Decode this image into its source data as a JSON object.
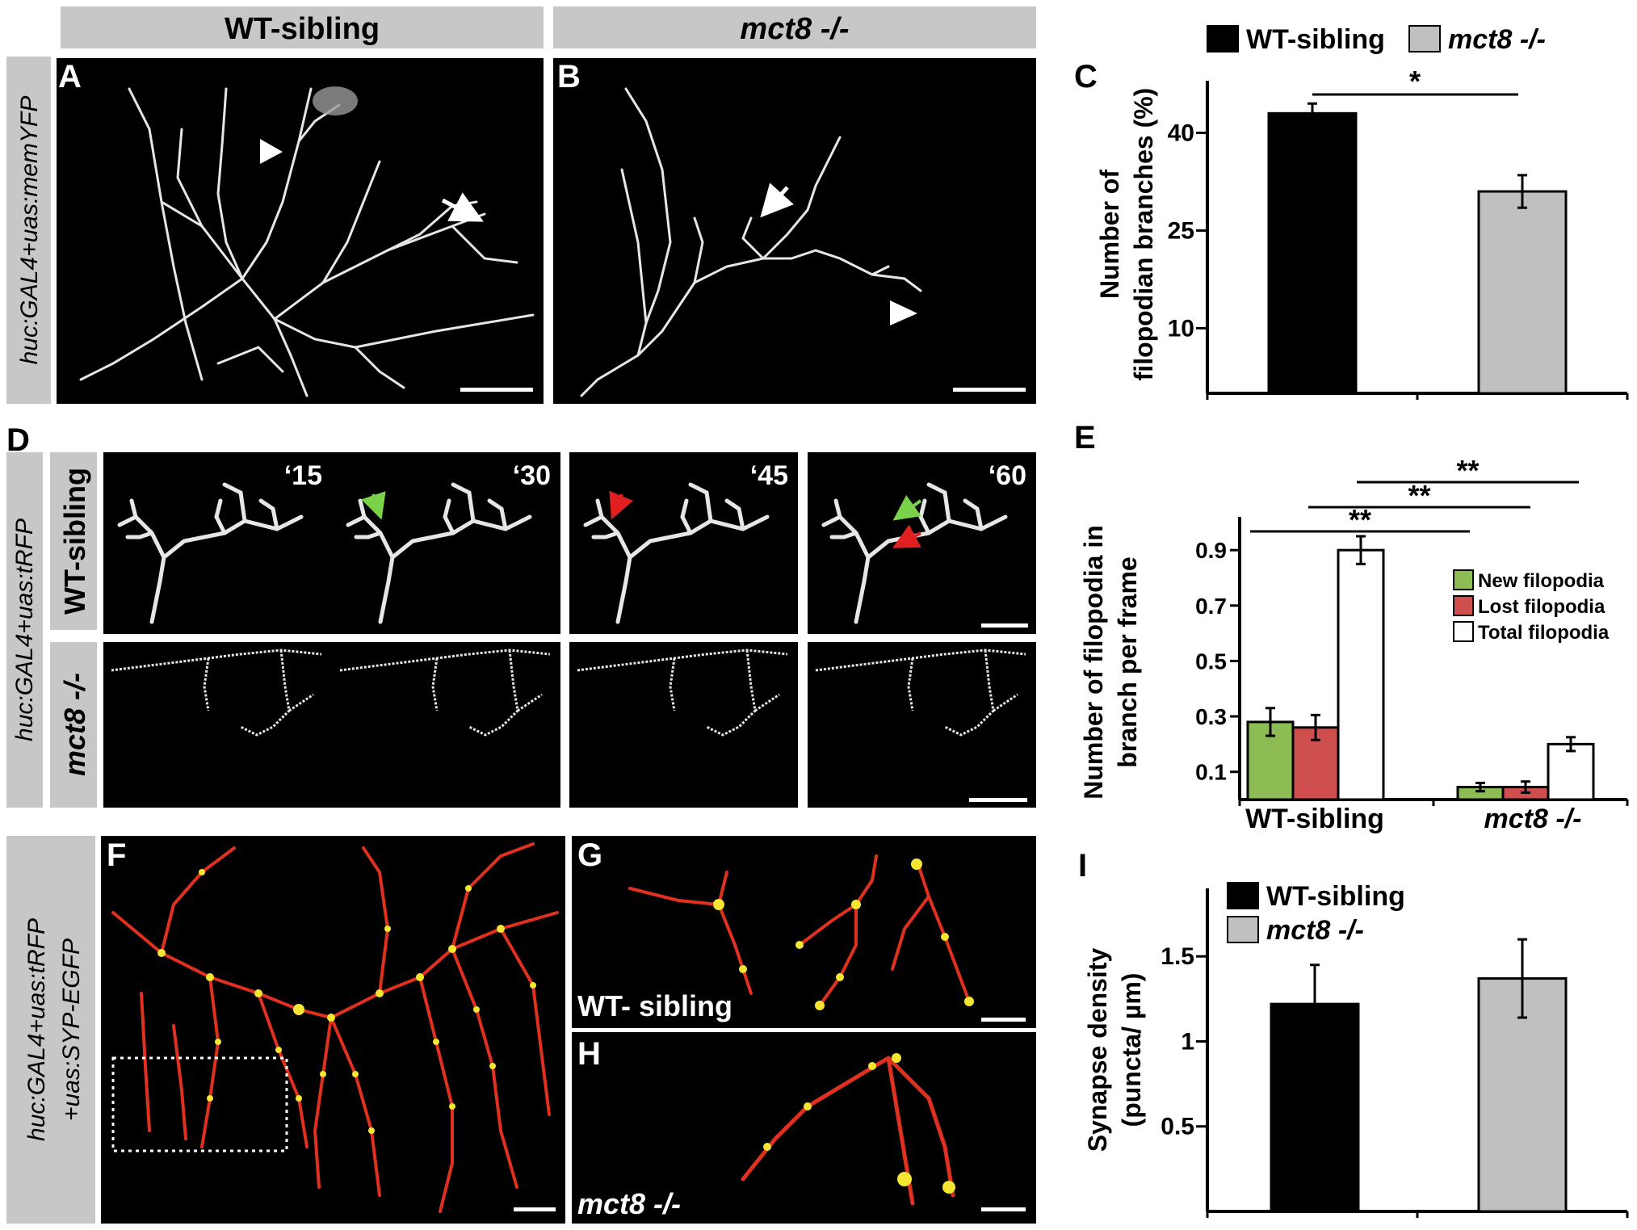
{
  "colors": {
    "grey_band": "#c7c7c7",
    "wt_bar": "#000000",
    "mut_bar": "#c0c0c0",
    "new_filopodia": "#8dbb54",
    "lost_filopodia": "#cf4f4f",
    "total_filopodia": "#ffffff",
    "neuron": "#e6e6e6",
    "neuron_red": "#e03020",
    "puncta_yellow": "#f5e633",
    "arrow_green": "#7ad24a",
    "arrow_red": "#e02020"
  },
  "panel_letters": {
    "A": "A",
    "B": "B",
    "C": "C",
    "D": "D",
    "E": "E",
    "F": "F",
    "G": "G",
    "H": "H",
    "I": "I"
  },
  "header": {
    "wt": "WT-sibling",
    "mut": "mct8 -/-"
  },
  "side_labels": {
    "ab": "huc:GAL4+uas:memYFP",
    "d": "huc:GAL4+uas:tRFP",
    "f_line1": "huc:GAL4+uas:tRFP",
    "f_line2": "+uas:SYP-EGFP"
  },
  "panel_d": {
    "row_wt": "WT-sibling",
    "row_mut": "mct8 -/-",
    "times": [
      "‘15",
      "‘30",
      "‘45",
      "‘60"
    ]
  },
  "panel_g_label": "WT- sibling",
  "panel_h_label": "mct8 -/-",
  "icons": [
    "arrowhead-icon",
    "arrow-icon",
    "scale-bar"
  ],
  "chart_data": [
    {
      "panel": "C",
      "type": "bar",
      "categories": [
        "WT-sibling",
        "mct8 -/-"
      ],
      "values": [
        43,
        31
      ],
      "errors": [
        1.5,
        2.5
      ],
      "ylabel": "Number of filopodian branches (%)",
      "ylim": [
        0,
        48
      ],
      "yticks": [
        10,
        25,
        40
      ],
      "legend": [
        "WT-sibling",
        "mct8 -/-"
      ],
      "significance": "*"
    },
    {
      "panel": "E",
      "type": "bar",
      "categories": [
        "WT-sibling",
        "mct8 -/-"
      ],
      "series": [
        {
          "name": "New filopodia",
          "values": [
            0.28,
            0.045
          ],
          "errors": [
            0.05,
            0.015
          ]
        },
        {
          "name": "Lost filopodia",
          "values": [
            0.26,
            0.045
          ],
          "errors": [
            0.045,
            0.02
          ]
        },
        {
          "name": "Total filopodia",
          "values": [
            0.9,
            0.2
          ],
          "errors": [
            0.05,
            0.025
          ]
        }
      ],
      "ylabel": "Number of filopodia in branch per frame",
      "ylim": [
        0,
        1.02
      ],
      "yticks": [
        0.1,
        0.3,
        0.5,
        0.7,
        0.9
      ],
      "significance": [
        "**",
        "**",
        "**"
      ]
    },
    {
      "panel": "I",
      "type": "bar",
      "categories": [
        "WT-sibling",
        "mct8 -/-"
      ],
      "values": [
        1.22,
        1.37
      ],
      "errors": [
        0.23,
        0.23
      ],
      "ylabel": "Synapse density (puncta/ µm)",
      "ylim": [
        0,
        1.9
      ],
      "yticks": [
        0.5,
        1,
        1.5
      ],
      "legend": [
        "WT-sibling",
        "mct8 -/-"
      ]
    }
  ]
}
